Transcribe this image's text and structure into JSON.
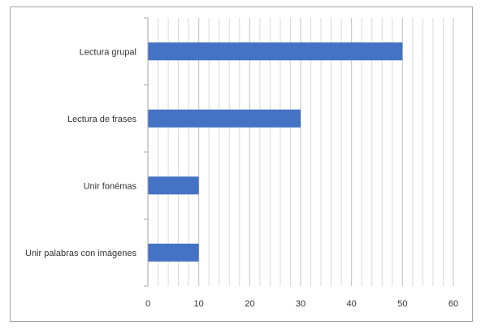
{
  "chart_data": {
    "type": "bar",
    "orientation": "horizontal",
    "categories": [
      "Lectura grupal",
      "Lectura de frases",
      "Unir fonémas",
      "Unir palabras con imágenes"
    ],
    "values": [
      50,
      30,
      10,
      10
    ],
    "xlim": [
      0,
      60
    ],
    "xticks": [
      0,
      10,
      20,
      30,
      40,
      50,
      60
    ],
    "grid": true,
    "bar_color": "#4472c4",
    "grid_color": "#d9d9d9",
    "axis_color": "#a6a6a6",
    "legend": "none"
  }
}
